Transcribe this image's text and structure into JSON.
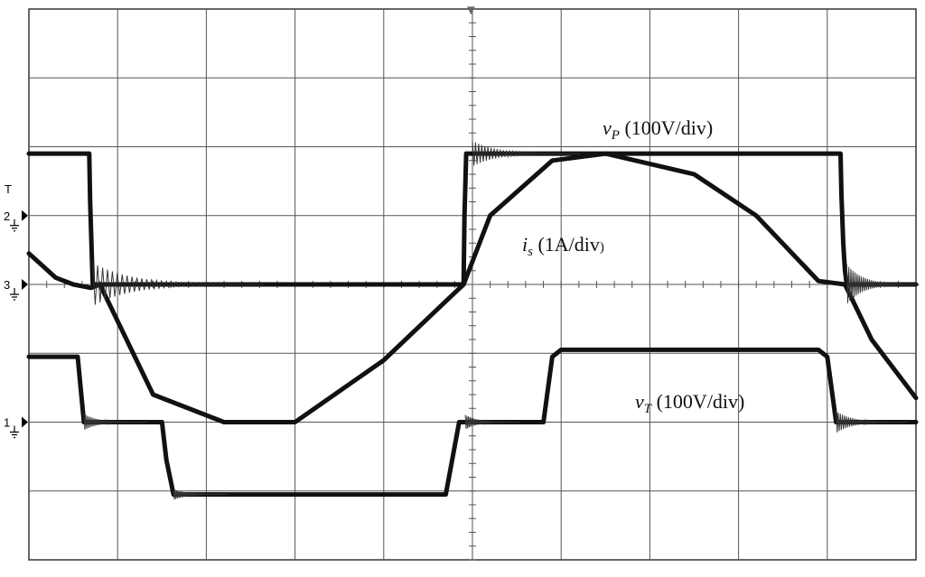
{
  "chart_data": {
    "type": "line",
    "title": "",
    "xlabel": "",
    "ylabel": "",
    "grid": true,
    "grid_divisions": {
      "x": 10,
      "y": 8
    },
    "xlim": [
      0,
      10
    ],
    "ylim": [
      -4,
      4
    ],
    "units": {
      "x": "div",
      "y": "div"
    },
    "channel_markers": [
      {
        "label": "1",
        "level": -2
      },
      {
        "label": "2",
        "level": 1
      },
      {
        "label": "3",
        "level": 0
      }
    ],
    "trigger_level_marker": "T",
    "trigger_position_marker": "▼",
    "annotations": [
      {
        "id": "vP",
        "symbol": "v",
        "subscript": "P",
        "text": " (100V/div)"
      },
      {
        "id": "is",
        "symbol": "i",
        "subscript": "s",
        "text": " (1A/div",
        "close": ")"
      },
      {
        "id": "vT",
        "symbol": "v",
        "subscript": "T",
        "text": " (100V/div)"
      }
    ],
    "series": [
      {
        "name": "vP",
        "x": [
          0,
          0.68,
          0.69,
          0.71,
          0.72,
          0.74,
          1.0,
          4.9,
          4.91,
          4.93,
          5.2,
          9.15,
          9.16,
          9.18,
          9.2,
          9.22,
          9.5,
          10
        ],
        "y": [
          1.9,
          1.9,
          1.2,
          0.4,
          0.0,
          0.0,
          0.0,
          0.0,
          1.0,
          1.9,
          1.9,
          1.9,
          1.3,
          0.6,
          0.2,
          0.0,
          0.0,
          0.0
        ]
      },
      {
        "name": "is",
        "x": [
          0,
          0.3,
          0.5,
          0.7,
          0.8,
          1.4,
          2.2,
          3.0,
          4.0,
          4.9,
          5.2,
          5.9,
          6.5,
          7.5,
          8.2,
          8.9,
          9.2,
          9.5,
          10
        ],
        "y": [
          0.45,
          0.1,
          0.0,
          -0.05,
          0.0,
          -1.6,
          -2.0,
          -2.0,
          -1.1,
          0.0,
          1.0,
          1.8,
          1.9,
          1.6,
          1.0,
          0.05,
          0.0,
          -0.8,
          -1.65
        ]
      },
      {
        "name": "vT",
        "x": [
          0,
          0.3,
          0.55,
          0.62,
          1.2,
          1.5,
          1.55,
          1.63,
          2.5,
          4.6,
          4.7,
          4.85,
          4.92,
          5.8,
          5.9,
          6.0,
          6.05,
          8.9,
          9.0,
          9.1,
          9.2,
          10
        ],
        "y": [
          -1.05,
          -1.05,
          -1.05,
          -2.0,
          -2.0,
          -2.0,
          -2.55,
          -3.05,
          -3.05,
          -3.05,
          -3.05,
          -2.0,
          -2.0,
          -2.0,
          -1.05,
          -0.95,
          -0.95,
          -0.95,
          -1.05,
          -2.0,
          -2.0,
          -2.0
        ]
      }
    ]
  }
}
